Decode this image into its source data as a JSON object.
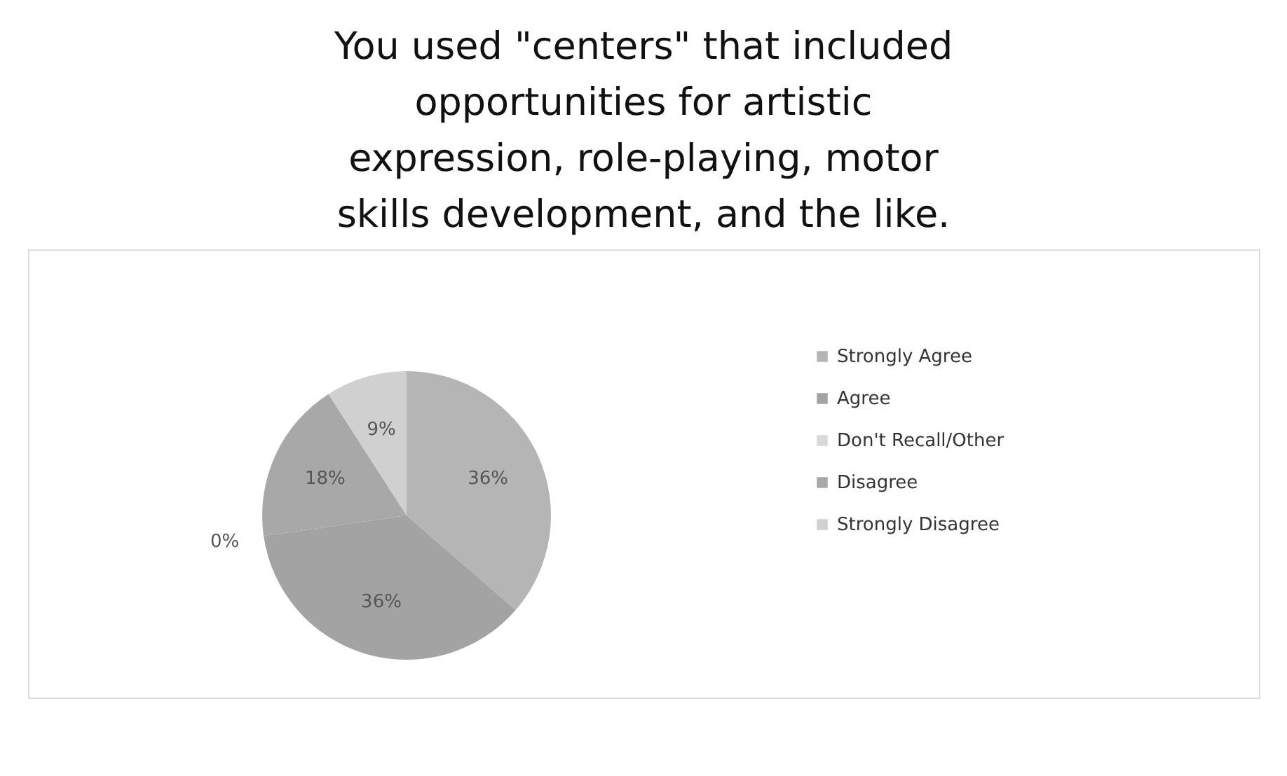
{
  "chart_data": {
    "type": "pie",
    "title": "You used \"centers\" that included opportunities for artistic expression, role-playing, motor skills development, and the like.",
    "categories": [
      "Strongly Agree",
      "Agree",
      "Don't Recall/Other",
      "Disagree",
      "Strongly Disagree"
    ],
    "values": [
      36,
      36,
      0,
      18,
      9
    ],
    "value_labels": [
      "36%",
      "36%",
      "0%",
      "18%",
      "9%"
    ],
    "colors": [
      "#b5b5b5",
      "#a3a3a3",
      "#d9d9d9",
      "#a8a8a8",
      "#d0d0d0"
    ],
    "legend": "right"
  }
}
